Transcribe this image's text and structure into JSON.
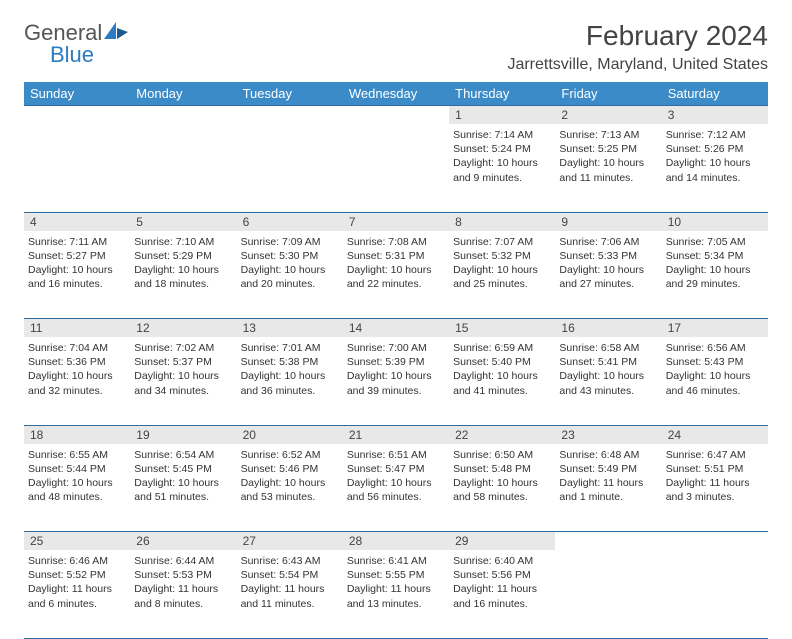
{
  "brand": {
    "part1": "General",
    "part2": "Blue"
  },
  "title": "February 2024",
  "location": "Jarrettsville, Maryland, United States",
  "header_bg": "#3b8bc9",
  "rule_color": "#2d6ca3",
  "daynum_bg": "#e8e8e8",
  "days": [
    "Sunday",
    "Monday",
    "Tuesday",
    "Wednesday",
    "Thursday",
    "Friday",
    "Saturday"
  ],
  "weeks": [
    {
      "nums": [
        "",
        "",
        "",
        "",
        "1",
        "2",
        "3"
      ],
      "cells": [
        null,
        null,
        null,
        null,
        {
          "sunrise": "Sunrise: 7:14 AM",
          "sunset": "Sunset: 5:24 PM",
          "day": "Daylight: 10 hours and 9 minutes."
        },
        {
          "sunrise": "Sunrise: 7:13 AM",
          "sunset": "Sunset: 5:25 PM",
          "day": "Daylight: 10 hours and 11 minutes."
        },
        {
          "sunrise": "Sunrise: 7:12 AM",
          "sunset": "Sunset: 5:26 PM",
          "day": "Daylight: 10 hours and 14 minutes."
        }
      ]
    },
    {
      "nums": [
        "4",
        "5",
        "6",
        "7",
        "8",
        "9",
        "10"
      ],
      "cells": [
        {
          "sunrise": "Sunrise: 7:11 AM",
          "sunset": "Sunset: 5:27 PM",
          "day": "Daylight: 10 hours and 16 minutes."
        },
        {
          "sunrise": "Sunrise: 7:10 AM",
          "sunset": "Sunset: 5:29 PM",
          "day": "Daylight: 10 hours and 18 minutes."
        },
        {
          "sunrise": "Sunrise: 7:09 AM",
          "sunset": "Sunset: 5:30 PM",
          "day": "Daylight: 10 hours and 20 minutes."
        },
        {
          "sunrise": "Sunrise: 7:08 AM",
          "sunset": "Sunset: 5:31 PM",
          "day": "Daylight: 10 hours and 22 minutes."
        },
        {
          "sunrise": "Sunrise: 7:07 AM",
          "sunset": "Sunset: 5:32 PM",
          "day": "Daylight: 10 hours and 25 minutes."
        },
        {
          "sunrise": "Sunrise: 7:06 AM",
          "sunset": "Sunset: 5:33 PM",
          "day": "Daylight: 10 hours and 27 minutes."
        },
        {
          "sunrise": "Sunrise: 7:05 AM",
          "sunset": "Sunset: 5:34 PM",
          "day": "Daylight: 10 hours and 29 minutes."
        }
      ]
    },
    {
      "nums": [
        "11",
        "12",
        "13",
        "14",
        "15",
        "16",
        "17"
      ],
      "cells": [
        {
          "sunrise": "Sunrise: 7:04 AM",
          "sunset": "Sunset: 5:36 PM",
          "day": "Daylight: 10 hours and 32 minutes."
        },
        {
          "sunrise": "Sunrise: 7:02 AM",
          "sunset": "Sunset: 5:37 PM",
          "day": "Daylight: 10 hours and 34 minutes."
        },
        {
          "sunrise": "Sunrise: 7:01 AM",
          "sunset": "Sunset: 5:38 PM",
          "day": "Daylight: 10 hours and 36 minutes."
        },
        {
          "sunrise": "Sunrise: 7:00 AM",
          "sunset": "Sunset: 5:39 PM",
          "day": "Daylight: 10 hours and 39 minutes."
        },
        {
          "sunrise": "Sunrise: 6:59 AM",
          "sunset": "Sunset: 5:40 PM",
          "day": "Daylight: 10 hours and 41 minutes."
        },
        {
          "sunrise": "Sunrise: 6:58 AM",
          "sunset": "Sunset: 5:41 PM",
          "day": "Daylight: 10 hours and 43 minutes."
        },
        {
          "sunrise": "Sunrise: 6:56 AM",
          "sunset": "Sunset: 5:43 PM",
          "day": "Daylight: 10 hours and 46 minutes."
        }
      ]
    },
    {
      "nums": [
        "18",
        "19",
        "20",
        "21",
        "22",
        "23",
        "24"
      ],
      "cells": [
        {
          "sunrise": "Sunrise: 6:55 AM",
          "sunset": "Sunset: 5:44 PM",
          "day": "Daylight: 10 hours and 48 minutes."
        },
        {
          "sunrise": "Sunrise: 6:54 AM",
          "sunset": "Sunset: 5:45 PM",
          "day": "Daylight: 10 hours and 51 minutes."
        },
        {
          "sunrise": "Sunrise: 6:52 AM",
          "sunset": "Sunset: 5:46 PM",
          "day": "Daylight: 10 hours and 53 minutes."
        },
        {
          "sunrise": "Sunrise: 6:51 AM",
          "sunset": "Sunset: 5:47 PM",
          "day": "Daylight: 10 hours and 56 minutes."
        },
        {
          "sunrise": "Sunrise: 6:50 AM",
          "sunset": "Sunset: 5:48 PM",
          "day": "Daylight: 10 hours and 58 minutes."
        },
        {
          "sunrise": "Sunrise: 6:48 AM",
          "sunset": "Sunset: 5:49 PM",
          "day": "Daylight: 11 hours and 1 minute."
        },
        {
          "sunrise": "Sunrise: 6:47 AM",
          "sunset": "Sunset: 5:51 PM",
          "day": "Daylight: 11 hours and 3 minutes."
        }
      ]
    },
    {
      "nums": [
        "25",
        "26",
        "27",
        "28",
        "29",
        "",
        ""
      ],
      "cells": [
        {
          "sunrise": "Sunrise: 6:46 AM",
          "sunset": "Sunset: 5:52 PM",
          "day": "Daylight: 11 hours and 6 minutes."
        },
        {
          "sunrise": "Sunrise: 6:44 AM",
          "sunset": "Sunset: 5:53 PM",
          "day": "Daylight: 11 hours and 8 minutes."
        },
        {
          "sunrise": "Sunrise: 6:43 AM",
          "sunset": "Sunset: 5:54 PM",
          "day": "Daylight: 11 hours and 11 minutes."
        },
        {
          "sunrise": "Sunrise: 6:41 AM",
          "sunset": "Sunset: 5:55 PM",
          "day": "Daylight: 11 hours and 13 minutes."
        },
        {
          "sunrise": "Sunrise: 6:40 AM",
          "sunset": "Sunset: 5:56 PM",
          "day": "Daylight: 11 hours and 16 minutes."
        },
        null,
        null
      ]
    }
  ]
}
